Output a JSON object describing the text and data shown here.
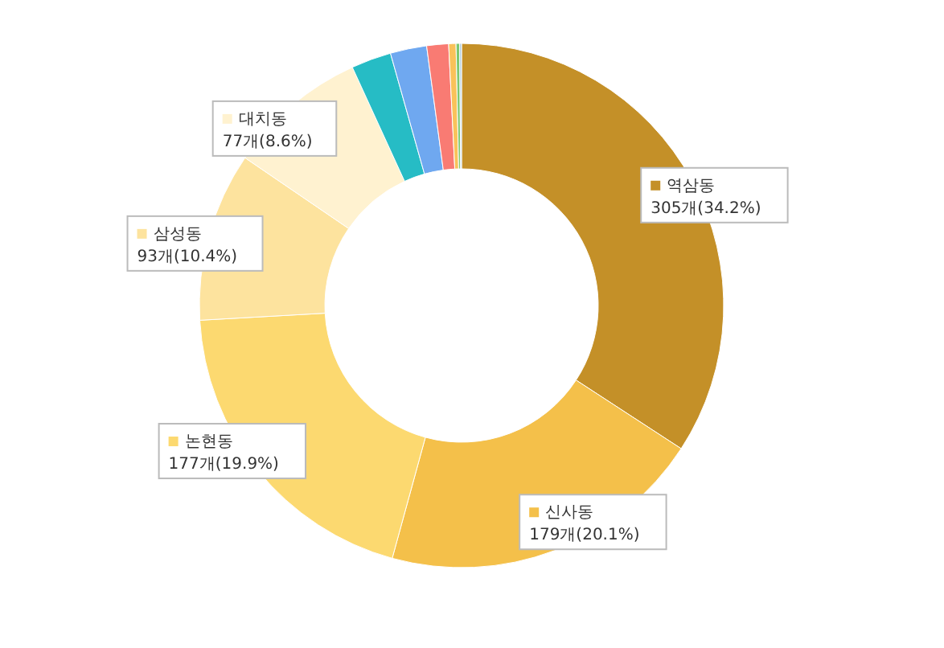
{
  "chart_data": {
    "type": "donut",
    "categories": [
      "역삼동",
      "신사동",
      "논현동",
      "삼성동",
      "대치동",
      null,
      null,
      null,
      null,
      null,
      null
    ],
    "values": [
      305,
      179,
      177,
      93,
      77,
      22,
      20,
      12,
      4,
      2,
      1
    ],
    "colors": [
      "#c49028",
      "#f4c04a",
      "#fcd970",
      "#fde39e",
      "#fff2d0",
      "#26bcc5",
      "#6fa8f0",
      "#f97b73",
      "#f9c25a",
      "#7cc870",
      "#a3c4d8"
    ],
    "value_labels": [
      "305개(34.2%)",
      "179개(20.1%)",
      "177개(19.9%)",
      "93개(10.4%)",
      "77개(8.6%)",
      null,
      null,
      null,
      null,
      null,
      null
    ],
    "legend": "left"
  }
}
